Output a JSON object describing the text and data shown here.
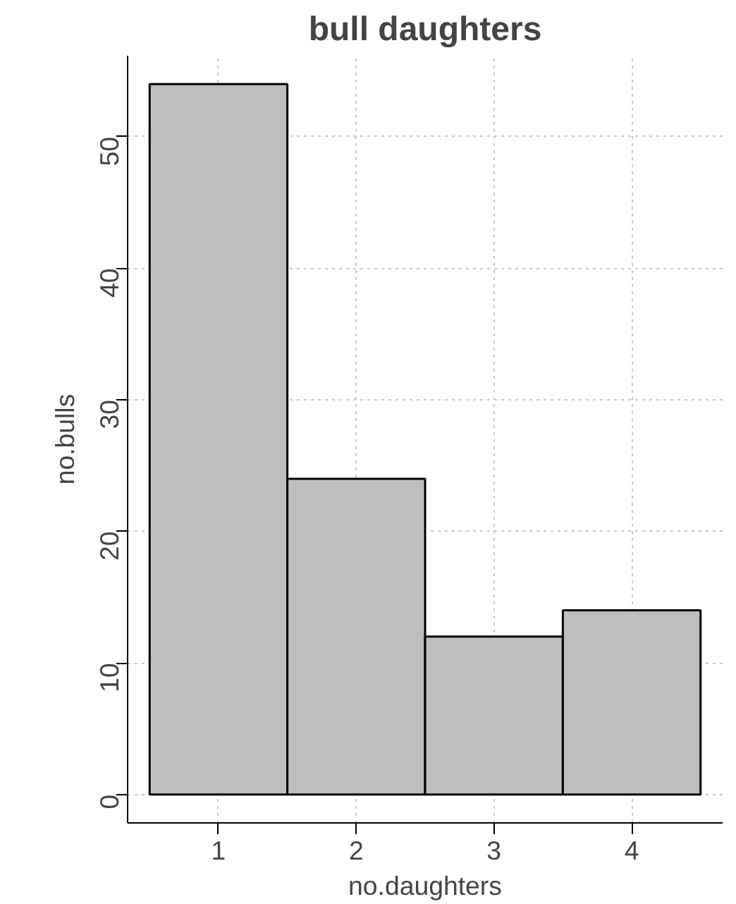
{
  "chart_data": {
    "type": "histogram",
    "title": "bull daughters",
    "xlabel": "no.daughters",
    "ylabel": "no.bulls",
    "bins": [
      0.5,
      1.5,
      2.5,
      3.5,
      4.5
    ],
    "values": [
      54,
      24,
      12,
      14
    ],
    "color": "#bebebe",
    "xlim": [
      0.34,
      4.66
    ],
    "ylim": [
      -2.16,
      56.16
    ],
    "xticks": [
      1,
      2,
      3,
      4
    ],
    "yticks": [
      0,
      10,
      20,
      30,
      40,
      50
    ],
    "grid": true,
    "line_style": "dotted"
  }
}
